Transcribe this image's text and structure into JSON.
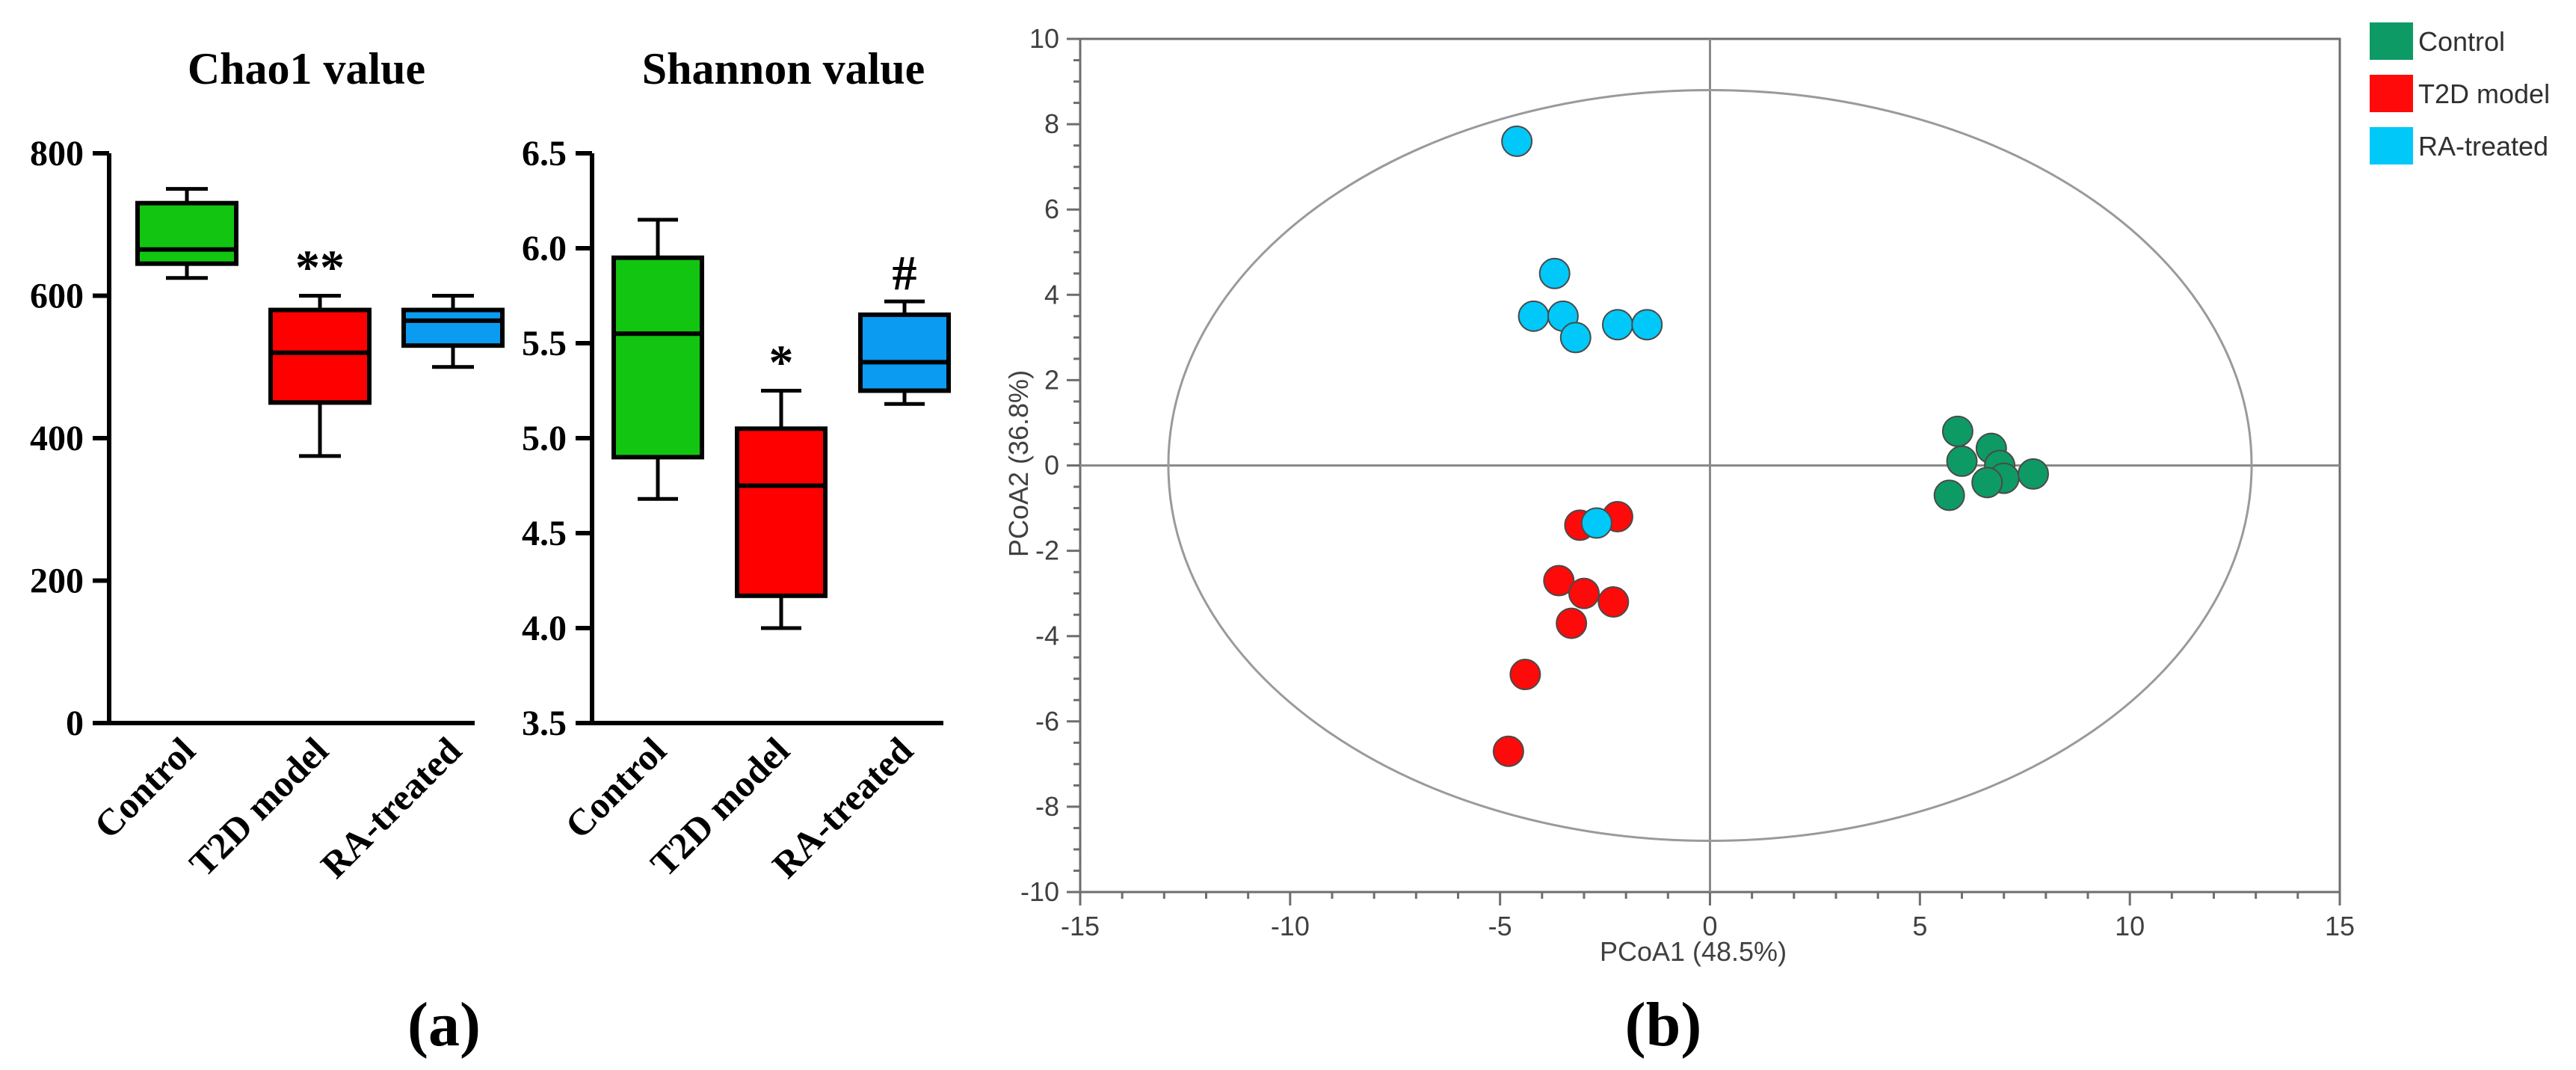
{
  "panel_labels": [
    "(a)",
    "(b)"
  ],
  "chart_data": [
    {
      "type": "box",
      "title": "Chao1 value",
      "categories": [
        "Control",
        "T2D model",
        "RA-treated"
      ],
      "ylim": [
        0,
        800
      ],
      "yticks": [
        0,
        200,
        400,
        600,
        800
      ],
      "ytick_labels": [
        "0",
        "200",
        "400",
        "600",
        "800"
      ],
      "boxes": [
        {
          "category": "Control",
          "min": 625,
          "q1": 645,
          "median": 665,
          "q3": 730,
          "max": 750,
          "color": "#11c511"
        },
        {
          "category": "T2D model",
          "min": 375,
          "q1": 450,
          "median": 520,
          "q3": 580,
          "max": 600,
          "color": "#ff0000"
        },
        {
          "category": "RA-treated",
          "min": 500,
          "q1": 530,
          "median": 565,
          "q3": 580,
          "max": 600,
          "color": "#0b9bf0"
        }
      ],
      "annotations": [
        {
          "category": "T2D model",
          "text": "**"
        }
      ]
    },
    {
      "type": "box",
      "title": "Shannon value",
      "categories": [
        "Control",
        "T2D model",
        "RA-treated"
      ],
      "ylim": [
        3.5,
        6.5
      ],
      "yticks": [
        3.5,
        4.0,
        4.5,
        5.0,
        5.5,
        6.0,
        6.5
      ],
      "ytick_labels": [
        "3.5",
        "4.0",
        "4.5",
        "5.0",
        "5.5",
        "6.0",
        "6.5"
      ],
      "boxes": [
        {
          "category": "Control",
          "min": 4.68,
          "q1": 4.9,
          "median": 5.55,
          "q3": 5.95,
          "max": 6.15,
          "color": "#11c511"
        },
        {
          "category": "T2D model",
          "min": 4.0,
          "q1": 4.17,
          "median": 4.75,
          "q3": 5.05,
          "max": 5.25,
          "color": "#ff0000"
        },
        {
          "category": "RA-treated",
          "min": 5.18,
          "q1": 5.25,
          "median": 5.4,
          "q3": 5.65,
          "max": 5.72,
          "color": "#0b9bf0"
        }
      ],
      "annotations": [
        {
          "category": "T2D model",
          "text": "*"
        },
        {
          "category": "RA-treated",
          "text": "#"
        }
      ]
    },
    {
      "type": "scatter",
      "xlabel": "PCoA1   (48.5%)",
      "ylabel": "PCoA2  (36.8%)",
      "xlim": [
        -15,
        15
      ],
      "ylim": [
        -10,
        10
      ],
      "xticks": [
        -15,
        -10,
        -5,
        0,
        5,
        10,
        15
      ],
      "xtick_labels": [
        "-15",
        "-10",
        "-5",
        "0",
        "5",
        "10",
        "15"
      ],
      "yticks": [
        -10,
        -8,
        -6,
        -4,
        -2,
        0,
        2,
        4,
        6,
        8,
        10
      ],
      "ytick_labels": [
        "-10",
        "-8",
        "-6",
        "-4",
        "-2",
        "0",
        "2",
        "4",
        "6",
        "8",
        "10"
      ],
      "ellipse": {
        "cx": 0,
        "cy": 0,
        "rx": 12.9,
        "ry": 8.8
      },
      "legend": {
        "position": "top-right-outside"
      },
      "series": [
        {
          "name": "Control",
          "color": "#0e9a65",
          "points": [
            [
              5.9,
              0.8
            ],
            [
              6.0,
              0.1
            ],
            [
              6.7,
              0.4
            ],
            [
              6.9,
              0.0
            ],
            [
              7.0,
              -0.3
            ],
            [
              7.7,
              -0.2
            ],
            [
              6.6,
              -0.4
            ],
            [
              5.7,
              -0.7
            ]
          ]
        },
        {
          "name": "T2D model",
          "color": "#ff0a0a",
          "points": [
            [
              -3.1,
              -1.4
            ],
            [
              -2.2,
              -1.2
            ],
            [
              -3.6,
              -2.7
            ],
            [
              -3.0,
              -3.0
            ],
            [
              -2.3,
              -3.2
            ],
            [
              -3.3,
              -3.7
            ],
            [
              -4.4,
              -4.9
            ],
            [
              -4.8,
              -6.7
            ]
          ]
        },
        {
          "name": "RA-treated",
          "color": "#00c8f8",
          "points": [
            [
              -4.6,
              7.6
            ],
            [
              -3.7,
              4.5
            ],
            [
              -4.2,
              3.5
            ],
            [
              -3.5,
              3.5
            ],
            [
              -3.2,
              3.0
            ],
            [
              -2.2,
              3.3
            ],
            [
              -1.5,
              3.3
            ],
            [
              -2.7,
              -1.35
            ]
          ]
        }
      ]
    }
  ]
}
